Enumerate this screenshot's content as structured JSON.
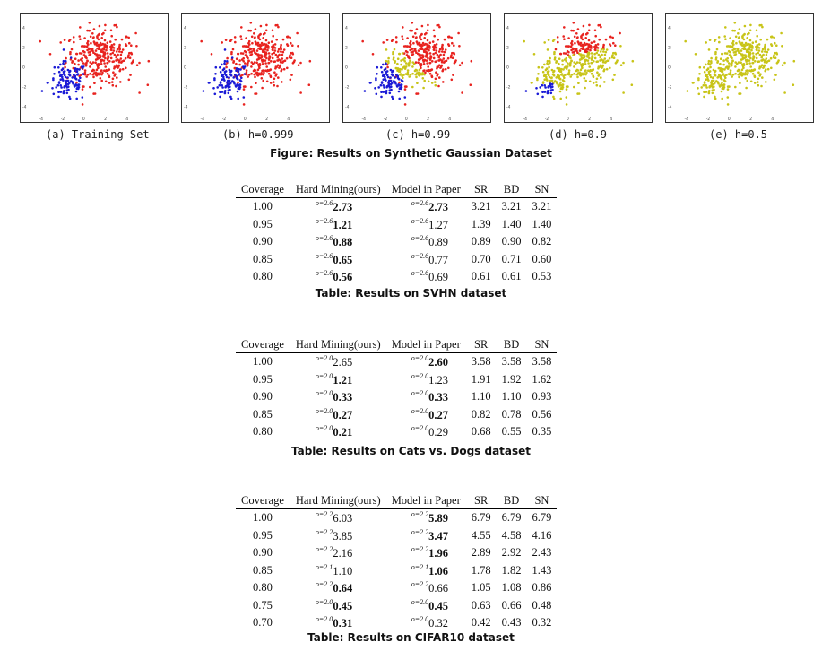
{
  "figure": {
    "caption": "Figure: Results on Synthetic Gaussian Dataset",
    "y_ticks": [
      "4",
      "2",
      "0",
      "-2",
      "-4"
    ],
    "x_ticks": [
      "-4",
      "-2",
      "0",
      "2",
      "4"
    ],
    "colors": {
      "class_a": "#e8231f",
      "class_b": "#1a1ad6",
      "rejected": "#c8c418"
    },
    "panels": [
      {
        "label": "(a) Training Set",
        "threshold": null
      },
      {
        "label": "(b) h=0.999",
        "threshold": 0.999
      },
      {
        "label": "(c) h=0.99",
        "threshold": 0.99
      },
      {
        "label": "(d) h=0.9",
        "threshold": 0.9
      },
      {
        "label": "(e) h=0.5",
        "threshold": 0.5
      }
    ]
  },
  "tables": [
    {
      "caption": "Table: Results on SVHN dataset",
      "headers": [
        "Coverage",
        "Hard Mining(ours)",
        "Model in Paper",
        "SR",
        "BD",
        "SN"
      ],
      "rows": [
        {
          "coverage": "1.00",
          "hm_sup": "o=2.6",
          "hm": "2.73",
          "hm_bold": true,
          "mp_sup": "o=2.6",
          "mp": "2.73",
          "mp_bold": true,
          "sr": "3.21",
          "bd": "3.21",
          "sn": "3.21"
        },
        {
          "coverage": "0.95",
          "hm_sup": "o=2.6",
          "hm": "1.21",
          "hm_bold": true,
          "mp_sup": "o=2.6",
          "mp": "1.27",
          "mp_bold": false,
          "sr": "1.39",
          "bd": "1.40",
          "sn": "1.40"
        },
        {
          "coverage": "0.90",
          "hm_sup": "o=2.6",
          "hm": "0.88",
          "hm_bold": true,
          "mp_sup": "o=2.6",
          "mp": "0.89",
          "mp_bold": false,
          "sr": "0.89",
          "bd": "0.90",
          "sn": "0.82"
        },
        {
          "coverage": "0.85",
          "hm_sup": "o=2.6",
          "hm": "0.65",
          "hm_bold": true,
          "mp_sup": "o=2.6",
          "mp": "0.77",
          "mp_bold": false,
          "sr": "0.70",
          "bd": "0.71",
          "sn": "0.60"
        },
        {
          "coverage": "0.80",
          "hm_sup": "o=2.6",
          "hm": "0.56",
          "hm_bold": true,
          "mp_sup": "o=2.6",
          "mp": "0.69",
          "mp_bold": false,
          "sr": "0.61",
          "bd": "0.61",
          "sn": "0.53"
        }
      ]
    },
    {
      "caption": "Table: Results on Cats vs. Dogs dataset",
      "headers": [
        "Coverage",
        "Hard Mining(ours)",
        "Model in Paper",
        "SR",
        "BD",
        "SN"
      ],
      "rows": [
        {
          "coverage": "1.00",
          "hm_sup": "o=2.0",
          "hm": "2.65",
          "hm_bold": false,
          "mp_sup": "o=2.0",
          "mp": "2.60",
          "mp_bold": true,
          "sr": "3.58",
          "bd": "3.58",
          "sn": "3.58"
        },
        {
          "coverage": "0.95",
          "hm_sup": "o=2.0",
          "hm": "1.21",
          "hm_bold": true,
          "mp_sup": "o=2.0",
          "mp": "1.23",
          "mp_bold": false,
          "sr": "1.91",
          "bd": "1.92",
          "sn": "1.62"
        },
        {
          "coverage": "0.90",
          "hm_sup": "o=2.0",
          "hm": "0.33",
          "hm_bold": true,
          "mp_sup": "o=2.0",
          "mp": "0.33",
          "mp_bold": true,
          "sr": "1.10",
          "bd": "1.10",
          "sn": "0.93"
        },
        {
          "coverage": "0.85",
          "hm_sup": "o=2.0",
          "hm": "0.27",
          "hm_bold": true,
          "mp_sup": "o=2.0",
          "mp": "0.27",
          "mp_bold": true,
          "sr": "0.82",
          "bd": "0.78",
          "sn": "0.56"
        },
        {
          "coverage": "0.80",
          "hm_sup": "o=2.0",
          "hm": "0.21",
          "hm_bold": true,
          "mp_sup": "o=2.0",
          "mp": "0.29",
          "mp_bold": false,
          "sr": "0.68",
          "bd": "0.55",
          "sn": "0.35"
        }
      ]
    },
    {
      "caption": "Table: Results on CIFAR10 dataset",
      "headers": [
        "Coverage",
        "Hard Mining(ours)",
        "Model in Paper",
        "SR",
        "BD",
        "SN"
      ],
      "rows": [
        {
          "coverage": "1.00",
          "hm_sup": "o=2.2",
          "hm": "6.03",
          "hm_bold": false,
          "mp_sup": "o=2.2",
          "mp": "5.89",
          "mp_bold": true,
          "sr": "6.79",
          "bd": "6.79",
          "sn": "6.79"
        },
        {
          "coverage": "0.95",
          "hm_sup": "o=2.2",
          "hm": "3.85",
          "hm_bold": false,
          "mp_sup": "o=2.2",
          "mp": "3.47",
          "mp_bold": true,
          "sr": "4.55",
          "bd": "4.58",
          "sn": "4.16"
        },
        {
          "coverage": "0.90",
          "hm_sup": "o=2.2",
          "hm": "2.16",
          "hm_bold": false,
          "mp_sup": "o=2.2",
          "mp": "1.96",
          "mp_bold": true,
          "sr": "2.89",
          "bd": "2.92",
          "sn": "2.43"
        },
        {
          "coverage": "0.85",
          "hm_sup": "o=2.1",
          "hm": "1.10",
          "hm_bold": false,
          "mp_sup": "o=2.1",
          "mp": "1.06",
          "mp_bold": true,
          "sr": "1.78",
          "bd": "1.82",
          "sn": "1.43"
        },
        {
          "coverage": "0.80",
          "hm_sup": "o=2.2",
          "hm": "0.64",
          "hm_bold": true,
          "mp_sup": "o=2.2",
          "mp": "0.66",
          "mp_bold": false,
          "sr": "1.05",
          "bd": "1.08",
          "sn": "0.86"
        },
        {
          "coverage": "0.75",
          "hm_sup": "o=2.0",
          "hm": "0.45",
          "hm_bold": true,
          "mp_sup": "o=2.0",
          "mp": "0.45",
          "mp_bold": true,
          "sr": "0.63",
          "bd": "0.66",
          "sn": "0.48"
        },
        {
          "coverage": "0.70",
          "hm_sup": "o=2.0",
          "hm": "0.31",
          "hm_bold": true,
          "mp_sup": "o=2.0",
          "mp": "0.32",
          "mp_bold": false,
          "sr": "0.42",
          "bd": "0.43",
          "sn": "0.32"
        }
      ]
    }
  ]
}
